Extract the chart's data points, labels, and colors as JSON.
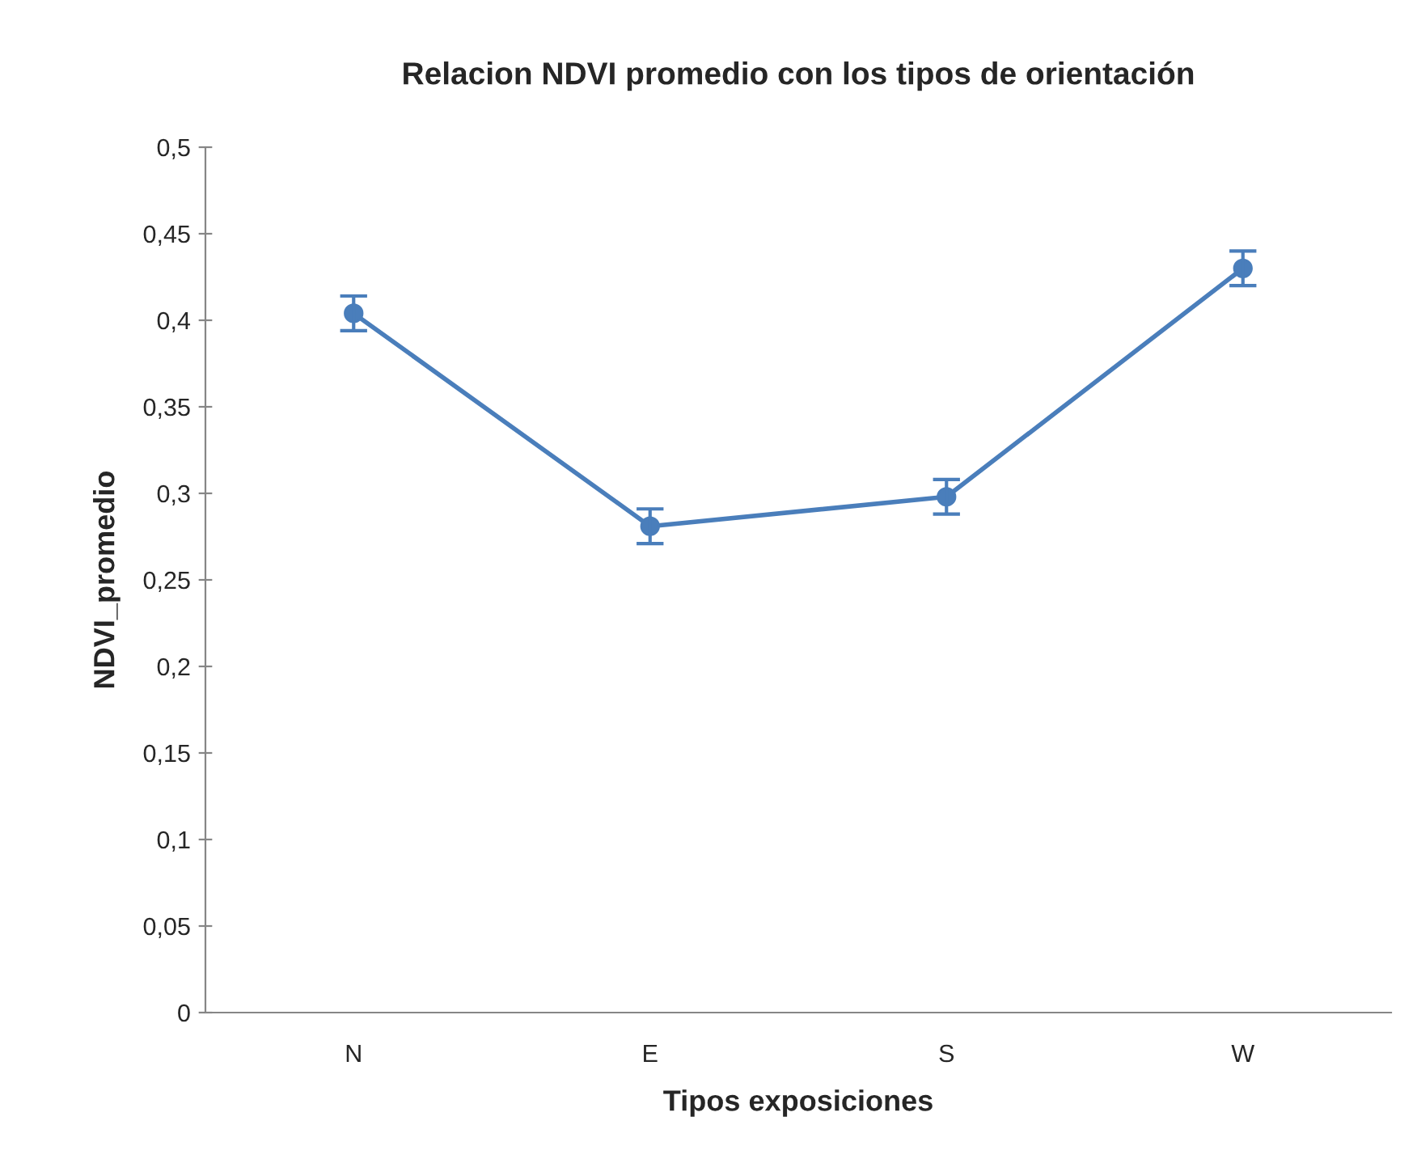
{
  "chart_data": {
    "type": "line",
    "title": "Relacion NDVI promedio con los tipos de orientación",
    "xlabel": "Tipos exposiciones",
    "ylabel": "NDVI_promedio",
    "categories": [
      "N",
      "E",
      "S",
      "W"
    ],
    "series": [
      {
        "color": "#4a7ebb",
        "values": [
          0.404,
          0.281,
          0.298,
          0.43
        ],
        "errors": [
          0.01,
          0.01,
          0.01,
          0.01
        ]
      }
    ],
    "ylim": [
      0,
      0.5
    ],
    "yticks": [
      0,
      {
        "value": 0.05,
        "label": "0,05"
      },
      {
        "value": 0.1,
        "label": "0,1"
      },
      {
        "value": 0.15,
        "label": "0,15"
      },
      {
        "value": 0.2,
        "label": "0,2"
      },
      {
        "value": 0.25,
        "label": "0,25"
      },
      {
        "value": 0.3,
        "label": "0,3"
      },
      {
        "value": 0.35,
        "label": "0,35"
      },
      {
        "value": 0.4,
        "label": "0,4"
      },
      {
        "value": 0.45,
        "label": "0,45"
      },
      {
        "value": 0.5,
        "label": "0,5"
      }
    ],
    "grid": false,
    "marker": "circle",
    "line_style": "solid"
  }
}
